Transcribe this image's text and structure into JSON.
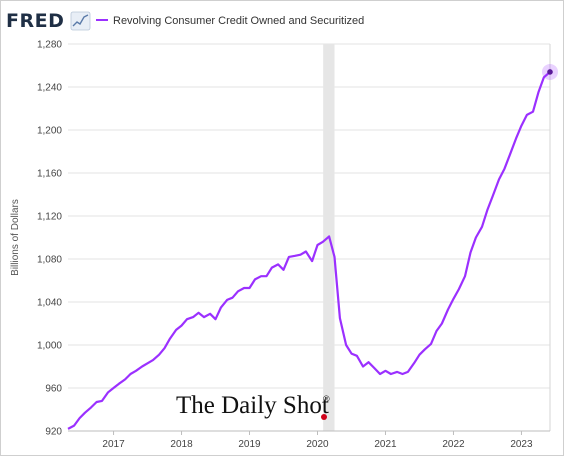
{
  "chart_data": {
    "type": "line",
    "source_logo": "FRED",
    "legend": [
      "Revolving Consumer Credit Owned and Securitized"
    ],
    "ylabel": "Billions of Dollars",
    "xlabel": "",
    "ylim": [
      920,
      1280
    ],
    "xlim": [
      2016.33,
      2023.42
    ],
    "yticks": [
      920,
      960,
      1000,
      1040,
      1080,
      1120,
      1160,
      1200,
      1240,
      1280
    ],
    "ytick_labels": [
      "920",
      "960",
      "1,000",
      "1,040",
      "1,080",
      "1,120",
      "1,160",
      "1,200",
      "1,240",
      "1,280"
    ],
    "xticks": [
      2017,
      2018,
      2019,
      2020,
      2021,
      2022,
      2023
    ],
    "xtick_labels": [
      "2017",
      "2018",
      "2019",
      "2020",
      "2021",
      "2022",
      "2023"
    ],
    "recession": [
      2020.083,
      2020.25
    ],
    "grid": "horizontal",
    "series": [
      {
        "color": "#9b30ff",
        "x": [
          2016.33,
          2016.42,
          2016.5,
          2016.58,
          2016.67,
          2016.75,
          2016.83,
          2016.92,
          2017.0,
          2017.08,
          2017.17,
          2017.25,
          2017.33,
          2017.42,
          2017.5,
          2017.58,
          2017.67,
          2017.75,
          2017.83,
          2017.92,
          2018.0,
          2018.08,
          2018.17,
          2018.25,
          2018.33,
          2018.42,
          2018.5,
          2018.58,
          2018.67,
          2018.75,
          2018.83,
          2018.92,
          2019.0,
          2019.08,
          2019.17,
          2019.25,
          2019.33,
          2019.42,
          2019.5,
          2019.58,
          2019.67,
          2019.75,
          2019.83,
          2019.92,
          2020.0,
          2020.08,
          2020.17,
          2020.25,
          2020.33,
          2020.42,
          2020.5,
          2020.58,
          2020.67,
          2020.75,
          2020.83,
          2020.92,
          2021.0,
          2021.08,
          2021.17,
          2021.25,
          2021.33,
          2021.42,
          2021.5,
          2021.58,
          2021.67,
          2021.75,
          2021.83,
          2021.92,
          2022.0,
          2022.08,
          2022.17,
          2022.25,
          2022.33,
          2022.42,
          2022.5,
          2022.58,
          2022.67,
          2022.75,
          2022.83,
          2022.92,
          2023.0,
          2023.08,
          2023.17,
          2023.25,
          2023.33
        ],
        "values": [
          922,
          925,
          932,
          937,
          942,
          947,
          948,
          956,
          960,
          964,
          968,
          973,
          976,
          980,
          983,
          986,
          991,
          997,
          1006,
          1014,
          1018,
          1024,
          1026,
          1030,
          1026,
          1029,
          1024,
          1035,
          1042,
          1044,
          1050,
          1053,
          1053,
          1061,
          1064,
          1064,
          1072,
          1075,
          1070,
          1082,
          1083,
          1084,
          1087,
          1078,
          1093,
          1096,
          1101,
          1082,
          1025,
          1000,
          992,
          990,
          980,
          984,
          979,
          973,
          976,
          973,
          975,
          973,
          975,
          983,
          991,
          996,
          1001,
          1013,
          1020,
          1033,
          1043,
          1052,
          1064,
          1086,
          1100,
          1110,
          1126,
          1139,
          1154,
          1164,
          1177,
          1192,
          1204,
          1214,
          1217,
          1235,
          1249
        ],
        "last_point": {
          "x": 2023.42,
          "y": 1254
        }
      }
    ]
  },
  "watermark": {
    "text": "The Daily Shot",
    "mark": "®"
  }
}
